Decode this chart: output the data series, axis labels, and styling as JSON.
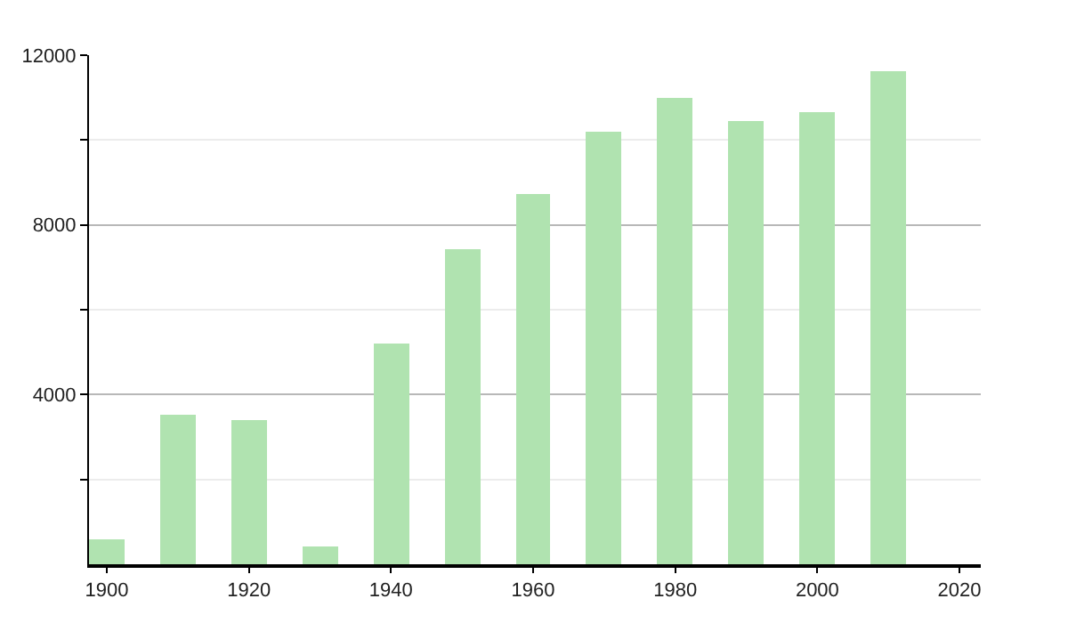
{
  "chart_data": {
    "type": "bar",
    "x": [
      1900,
      1910,
      1920,
      1930,
      1940,
      1950,
      1960,
      1970,
      1980,
      1990,
      2000,
      2010
    ],
    "values": [
      580,
      3530,
      3400,
      415,
      5200,
      7410,
      8740,
      10200,
      11000,
      10440,
      10660,
      11620
    ],
    "color": "#b0e3b0",
    "xlim": [
      1897.5,
      2023
    ],
    "xticks": [
      1900,
      1920,
      1940,
      1960,
      1980,
      2000,
      2020
    ],
    "ylim": [
      0,
      12000
    ],
    "yticks": [
      {
        "value": 2000,
        "label": null
      },
      4000,
      {
        "value": 6000,
        "label": null
      },
      8000,
      {
        "value": 10000,
        "label": null
      },
      12000
    ],
    "grid": "y"
  }
}
